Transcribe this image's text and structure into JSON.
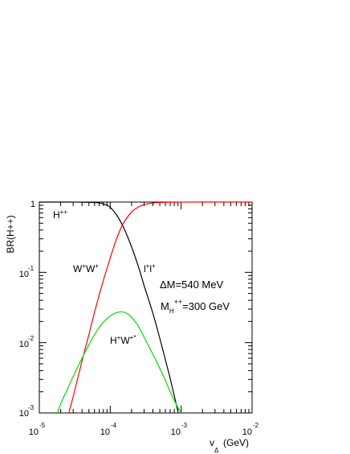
{
  "chart_data": {
    "type": "line",
    "xlabel": "v",
    "xlabel_sub": "Δ",
    "xlabel_unit": "(GeV)",
    "ylabel": "BR(H++)",
    "xscale": "log",
    "yscale": "log",
    "xlim": [
      1e-05,
      0.01
    ],
    "ylim": [
      0.001,
      1
    ],
    "x_ticks": [
      {
        "base": "10",
        "exp": "-5"
      },
      {
        "base": "10",
        "exp": "-4"
      },
      {
        "base": "10",
        "exp": "-3"
      },
      {
        "base": "10",
        "exp": "-2"
      }
    ],
    "y_ticks": [
      {
        "base": "1",
        "exp": ""
      },
      {
        "base": "10",
        "exp": "-1"
      },
      {
        "base": "10",
        "exp": "-2"
      },
      {
        "base": "10",
        "exp": "-3"
      }
    ],
    "grid": false,
    "annotations": {
      "panel_label": {
        "main": "H",
        "sup": "++"
      },
      "param_dm": "ΔM=540 MeV",
      "param_mass": {
        "prefix": "M",
        "sub": "H",
        "sup": "++",
        "suffix": "=300 GeV"
      }
    },
    "series": [
      {
        "name": "l+l+",
        "label": {
          "main1": "l",
          "sup1": "+",
          "main2": "l",
          "sup2": "+"
        },
        "color": "#000000",
        "x": [
          1e-05,
          2e-05,
          3e-05,
          4e-05,
          5e-05,
          6e-05,
          7e-05,
          8e-05,
          0.0001,
          0.00013,
          0.00016,
          0.0002,
          0.00025,
          0.0003,
          0.0004,
          0.0005,
          0.0006,
          0.0007,
          0.0008,
          0.0009
        ],
        "y": [
          1.0,
          1.0,
          0.999,
          0.997,
          0.993,
          0.985,
          0.97,
          0.94,
          0.84,
          0.6,
          0.4,
          0.23,
          0.12,
          0.065,
          0.026,
          0.0115,
          0.0057,
          0.0031,
          0.00175,
          0.00105
        ]
      },
      {
        "name": "W+W+",
        "label": {
          "main1": "W",
          "sup1": "+",
          "main2": "W",
          "sup2": "+"
        },
        "color": "#ff0000",
        "x": [
          2.6e-05,
          3e-05,
          4e-05,
          5e-05,
          6e-05,
          7e-05,
          8e-05,
          0.0001,
          0.00012,
          0.00015,
          0.0002,
          0.00025,
          0.0003,
          0.0004,
          0.0005,
          0.0007,
          0.001,
          0.002,
          0.005,
          0.01
        ],
        "y": [
          0.001,
          0.0017,
          0.0055,
          0.013,
          0.027,
          0.048,
          0.077,
          0.16,
          0.28,
          0.48,
          0.72,
          0.85,
          0.92,
          0.97,
          0.985,
          0.995,
          0.998,
          1.0,
          1.0,
          1.0
        ]
      },
      {
        "name": "H+W+*",
        "label": {
          "main1": "H",
          "sup1": "+",
          "main2": "W",
          "sup2": "+*"
        },
        "color": "#00e000",
        "x": [
          1.8e-05,
          2e-05,
          2.5e-05,
          3e-05,
          4e-05,
          5e-05,
          6e-05,
          7e-05,
          8e-05,
          0.0001,
          0.00012,
          0.000145,
          0.00017,
          0.0002,
          0.00025,
          0.0003,
          0.0004,
          0.0005,
          0.0006,
          0.0007,
          0.0008,
          0.0009,
          0.001
        ],
        "y": [
          0.001,
          0.00135,
          0.0022,
          0.0033,
          0.006,
          0.0093,
          0.013,
          0.0165,
          0.0195,
          0.024,
          0.0265,
          0.0275,
          0.0262,
          0.023,
          0.017,
          0.012,
          0.0068,
          0.0043,
          0.0029,
          0.002,
          0.0015,
          0.0012,
          0.001
        ]
      }
    ]
  }
}
